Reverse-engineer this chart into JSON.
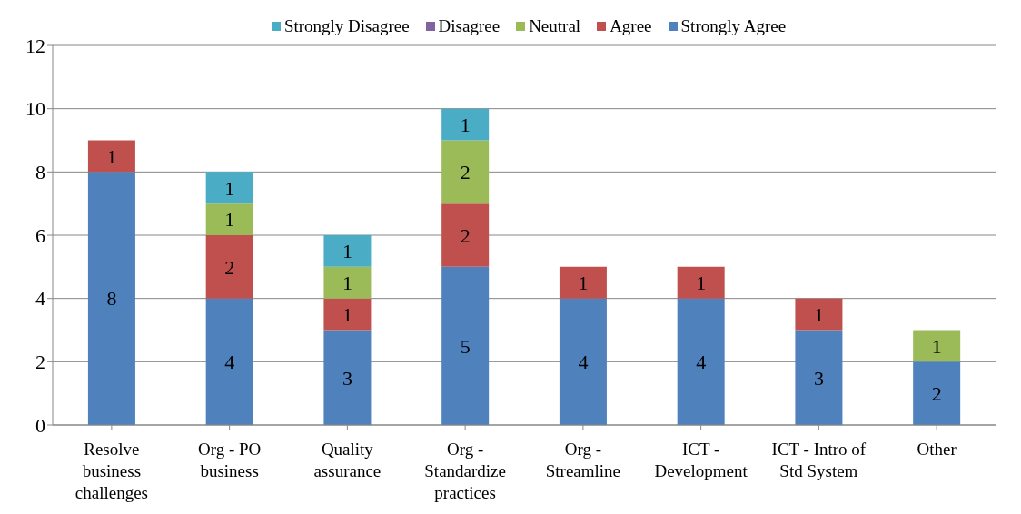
{
  "chart_data": {
    "type": "bar",
    "stacked": true,
    "categories": [
      "Resolve business challenges",
      "Org - PO business",
      "Quality assurance",
      "Org - Standardize practices",
      "Org - Streamline",
      "ICT - Development",
      "ICT - Intro of Std System",
      "Other"
    ],
    "series": [
      {
        "name": "Strongly Agree",
        "color": "#4f81bd",
        "values": [
          8,
          4,
          3,
          5,
          4,
          4,
          3,
          2
        ]
      },
      {
        "name": "Agree",
        "color": "#c0504d",
        "values": [
          1,
          2,
          1,
          2,
          1,
          1,
          1,
          null
        ]
      },
      {
        "name": "Neutral",
        "color": "#9bbb59",
        "values": [
          null,
          1,
          1,
          2,
          null,
          null,
          null,
          1
        ]
      },
      {
        "name": "Disagree",
        "color": "#8064a2",
        "values": [
          null,
          null,
          null,
          null,
          null,
          null,
          null,
          null
        ]
      },
      {
        "name": "Strongly Disagree",
        "color": "#4bacc6",
        "values": [
          null,
          1,
          1,
          1,
          null,
          null,
          null,
          null
        ]
      }
    ],
    "ylim": [
      0,
      12
    ],
    "yticks": [
      0,
      2,
      4,
      6,
      8,
      10,
      12
    ],
    "grid": "y",
    "legend": "top",
    "data_labels": true
  }
}
